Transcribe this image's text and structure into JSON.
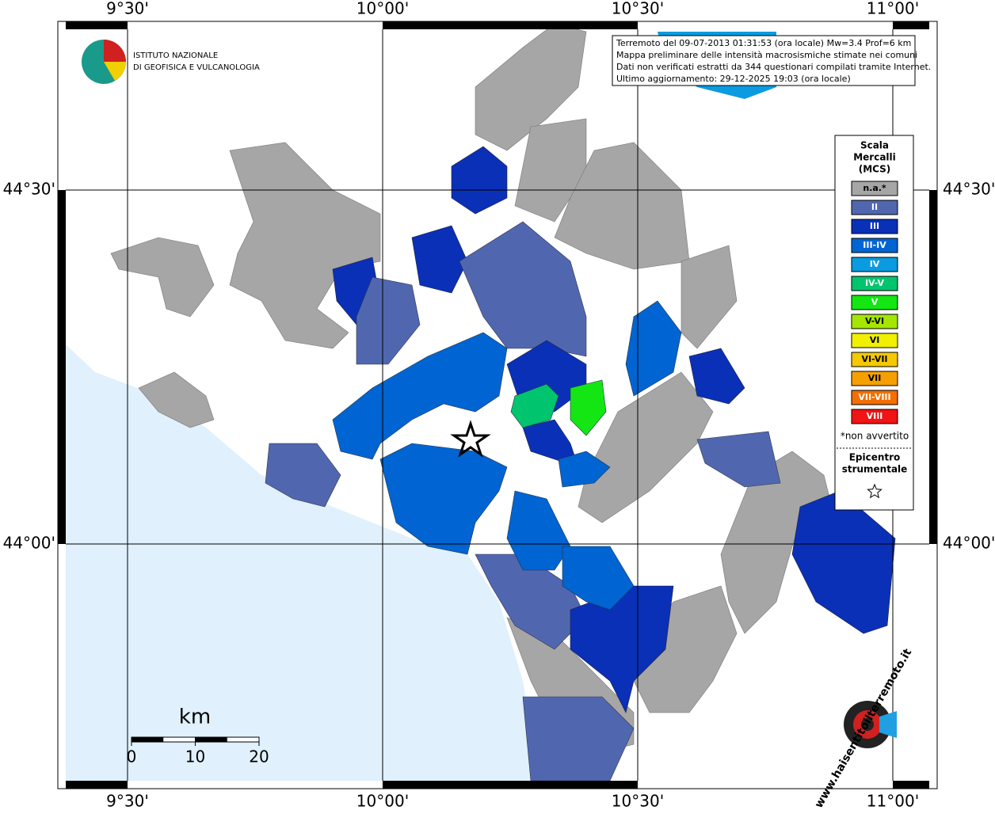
{
  "axes": {
    "top": [
      "9°30'",
      "10°00'",
      "10°30'",
      "11°00'"
    ],
    "bottom": [
      "9°30'",
      "10°00'",
      "10°30'",
      "11°00'"
    ],
    "left": [
      "44°30'",
      "44°00'"
    ],
    "right": [
      "44°30'",
      "44°00'"
    ]
  },
  "info": {
    "lines": [
      "Terremoto del 09-07-2013 01:31:53 (ora locale) Mw=3.4 Prof=6 km",
      "Mappa preliminare delle intensità macrosismiche stimate nei comuni",
      "Dati non verificati estratti da 344 questionari compilati tramite Internet.",
      "Ultimo aggiornamento: 29-12-2025 19:03 (ora locale)"
    ]
  },
  "institute": {
    "lines": [
      "ISTITUTO NAZIONALE",
      "DI GEOFISICA E VULCANOLOGIA"
    ]
  },
  "legend": {
    "title": [
      "Scala",
      "Mercalli",
      "(MCS)"
    ],
    "levels": [
      {
        "label": "n.a.*",
        "color": "#a6a6a6"
      },
      {
        "label": "II",
        "color": "#5067b0"
      },
      {
        "label": "III",
        "color": "#0a30b8"
      },
      {
        "label": "III-IV",
        "color": "#0064d2"
      },
      {
        "label": "IV",
        "color": "#0a9be0"
      },
      {
        "label": "IV-V",
        "color": "#00c46e"
      },
      {
        "label": "V",
        "color": "#14e614"
      },
      {
        "label": "V-VI",
        "color": "#a5e600"
      },
      {
        "label": "VI",
        "color": "#f0f000"
      },
      {
        "label": "VI-VII",
        "color": "#f5c800"
      },
      {
        "label": "VII",
        "color": "#f5a000"
      },
      {
        "label": "VII-VIII",
        "color": "#f56e00"
      },
      {
        "label": "VIII",
        "color": "#f01414"
      }
    ],
    "note": "*non avvertito",
    "epicenter": [
      "Epicentro",
      "strumentale"
    ]
  },
  "scale_bar": {
    "unit": "km",
    "ticks": [
      0,
      10,
      20
    ]
  },
  "website": "www.haisentitoilterremoto.it"
}
